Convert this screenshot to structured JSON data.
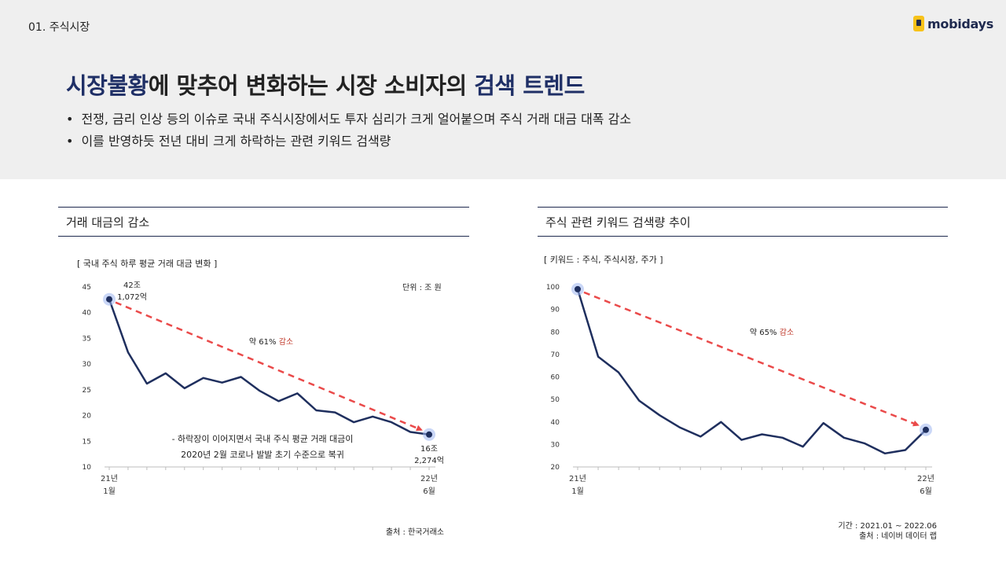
{
  "section_label": "01. 주식시장",
  "logo": {
    "text": "mobidays",
    "icon": "mobidays-logo-icon"
  },
  "headline": {
    "part1": "시장불황",
    "part2": "에 맞추어 변화하는 시장 소비자의 ",
    "part3": "검색 트렌드"
  },
  "bullets": [
    "전쟁, 금리 인상 등의 이슈로 국내 주식시장에서도 투자 심리가 크게 얼어붙으며 주식 거래 대금 대폭 감소",
    "이를 반영하듯 전년 대비 크게 하락하는 관련 키워드 검색량"
  ],
  "left_panel": {
    "title": "거래 대금의 감소",
    "subtitle": "[ 국내 주식 하루 평균 거래 대금 변화 ]",
    "unit": "단위 : 조 원",
    "source": "출처 : 한국거래소"
  },
  "right_panel": {
    "title": "주식 관련 키워드 검색량 추이",
    "subtitle": "[ 키워드 : 주식, 주식시장, 주가 ]",
    "period": "기간 : 2021.01 ~ 2022.06",
    "source": "출처 : 네이버 데이터 랩"
  },
  "colors": {
    "line": "#1f2f5e",
    "arrow": "#ea4a4a",
    "accent_text": "#c0392b",
    "brand": "#1f2f66"
  },
  "chart_data": [
    {
      "type": "line",
      "x_start_label": [
        "21년",
        "1월"
      ],
      "x_end_label": [
        "22년",
        "6월"
      ],
      "y_ticks": [
        "45",
        "40",
        "35",
        "30",
        "25",
        "20",
        "15",
        "10"
      ],
      "ylim": [
        10,
        45
      ],
      "values": [
        42.6,
        32.3,
        26.2,
        28.2,
        25.3,
        27.3,
        26.4,
        27.5,
        24.8,
        22.8,
        24.3,
        21.0,
        20.6,
        18.7,
        19.8,
        18.7,
        16.8,
        16.3
      ],
      "start_label": [
        "42조",
        "1,072억"
      ],
      "end_label": [
        "16조",
        "2,274억"
      ],
      "trend_label": {
        "prefix": "약 61% ",
        "highlight": "감소"
      },
      "annotation": [
        "- 하락장이 이어지면서 국내 주식 평균 거래 대금이",
        "2020년 2월 코로나 발발 초기 수준으로 복귀"
      ]
    },
    {
      "type": "line",
      "x_start_label": [
        "21년",
        "1월"
      ],
      "x_end_label": [
        "22년",
        "6월"
      ],
      "y_ticks": [
        "100",
        "90",
        "80",
        "70",
        "60",
        "50",
        "40",
        "30",
        "20"
      ],
      "ylim": [
        20,
        100
      ],
      "values": [
        99,
        69,
        62,
        49.5,
        43,
        37.5,
        33.5,
        40,
        32,
        34.5,
        33,
        29,
        39.5,
        33,
        30.5,
        26,
        27.5,
        36.5
      ],
      "trend_label": {
        "prefix": "약 65% ",
        "highlight": "감소"
      }
    }
  ]
}
